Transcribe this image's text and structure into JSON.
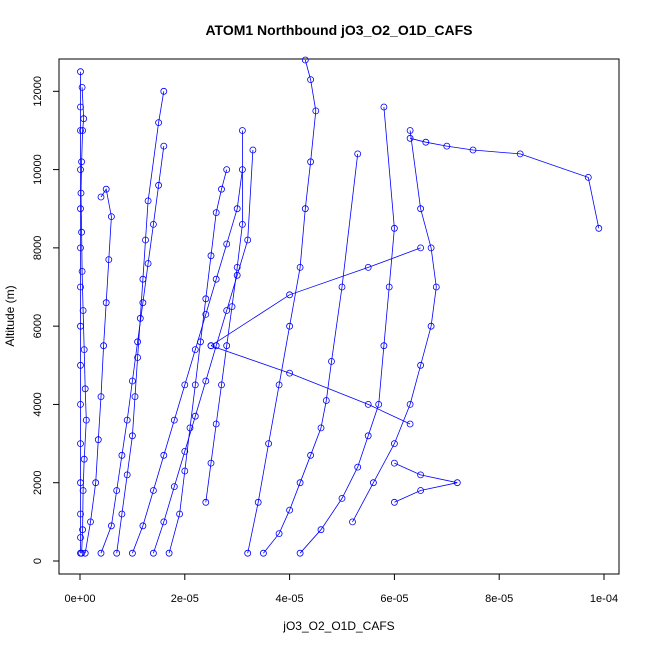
{
  "chart_data": {
    "type": "scatter",
    "title": "ATOM1 Northbound jO3_O2_O1D_CAFS",
    "xlabel": "jO3_O2_O1D_CAFS",
    "ylabel": "Altitude (m)",
    "xlim": [
      0,
      0.0001
    ],
    "ylim": [
      0,
      12800
    ],
    "x_ticks": [
      0,
      2e-05,
      4e-05,
      6e-05,
      8e-05,
      0.0001
    ],
    "x_tick_labels": [
      "0e+00",
      "2e-05",
      "4e-05",
      "6e-05",
      "8e-05",
      "1e-04"
    ],
    "y_ticks": [
      0,
      2000,
      4000,
      6000,
      8000,
      10000,
      12000
    ],
    "y_tick_labels": [
      "0",
      "2000",
      "4000",
      "6000",
      "8000",
      "10000",
      "12000"
    ],
    "grid": false,
    "legend": "none",
    "line_color": "#0000ff",
    "series": [
      {
        "x": [
          1e-07,
          1e-07,
          1e-07,
          1e-07,
          1e-07,
          1e-07,
          1e-07,
          1e-07,
          1e-07,
          1e-07,
          1e-07,
          1e-07,
          1e-07,
          1e-07,
          1e-07
        ],
        "y": [
          200,
          600,
          1200,
          2000,
          3000,
          4000,
          5000,
          6000,
          7000,
          8000,
          9000,
          10000,
          11000,
          11600,
          12500
        ]
      },
      {
        "x": [
          3e-07,
          5e-07,
          6e-07,
          8e-07,
          1.2e-06,
          1e-06,
          8e-07,
          6e-07,
          4e-07,
          3e-07,
          2e-07,
          3e-07,
          5e-07,
          7e-07,
          4e-07
        ],
        "y": [
          200,
          800,
          1800,
          2600,
          3600,
          4400,
          5400,
          6400,
          7400,
          8400,
          9400,
          10200,
          11000,
          11300,
          12100
        ]
      },
      {
        "x": [
          1e-06,
          2e-06,
          3e-06,
          3.5e-06,
          4e-06,
          4.5e-06,
          5e-06,
          5.5e-06,
          6e-06,
          5e-06,
          4e-06
        ],
        "y": [
          200,
          1000,
          2000,
          3100,
          4200,
          5500,
          6600,
          7700,
          8800,
          9500,
          9300
        ]
      },
      {
        "x": [
          4e-06,
          6e-06,
          7e-06,
          8e-06,
          9e-06,
          1e-05,
          1.1e-05,
          1.2e-05,
          1.3e-05,
          1.4e-05,
          1.5e-05,
          1.6e-05
        ],
        "y": [
          200,
          900,
          1800,
          2700,
          3600,
          4600,
          5600,
          6600,
          7600,
          8600,
          9600,
          10600
        ]
      },
      {
        "x": [
          7e-06,
          8e-06,
          9e-06,
          1e-05,
          1.05e-05,
          1.1e-05,
          1.15e-05,
          1.2e-05,
          1.25e-05,
          1.3e-05,
          1.5e-05,
          1.6e-05
        ],
        "y": [
          200,
          1200,
          2200,
          3200,
          4200,
          5200,
          6200,
          7200,
          8200,
          9200,
          11200,
          12000
        ]
      },
      {
        "x": [
          1e-05,
          1.2e-05,
          1.4e-05,
          1.6e-05,
          1.8e-05,
          2e-05,
          2.2e-05,
          2.4e-05,
          2.6e-05,
          2.8e-05,
          3e-05,
          3.1e-05
        ],
        "y": [
          200,
          900,
          1800,
          2700,
          3600,
          4500,
          5400,
          6300,
          7200,
          8100,
          9000,
          10000
        ]
      },
      {
        "x": [
          1.4e-05,
          1.6e-05,
          1.8e-05,
          2e-05,
          2.2e-05,
          2.4e-05,
          2.6e-05,
          2.8e-05,
          3e-05,
          3.2e-05,
          3.3e-05
        ],
        "y": [
          200,
          1000,
          1900,
          2800,
          3700,
          4600,
          5500,
          6400,
          7300,
          8200,
          10500
        ]
      },
      {
        "x": [
          1.7e-05,
          1.9e-05,
          2e-05,
          2.1e-05,
          2.2e-05,
          2.3e-05,
          2.4e-05,
          2.5e-05,
          2.6e-05,
          2.7e-05,
          2.8e-05
        ],
        "y": [
          200,
          1200,
          2300,
          3400,
          4500,
          5600,
          6700,
          7800,
          8900,
          9500,
          10000
        ]
      },
      {
        "x": [
          2.4e-05,
          2.5e-05,
          2.6e-05,
          2.7e-05,
          2.8e-05,
          2.9e-05,
          3e-05,
          3.1e-05,
          3.1e-05
        ],
        "y": [
          1500,
          2500,
          3500,
          4500,
          5500,
          6500,
          7500,
          8600,
          11000
        ]
      },
      {
        "x": [
          3.2e-05,
          3.4e-05,
          3.6e-05,
          3.8e-05,
          4e-05,
          4.2e-05,
          4.3e-05,
          4.4e-05,
          4.5e-05,
          4.4e-05,
          4.3e-05
        ],
        "y": [
          200,
          1500,
          3000,
          4500,
          6000,
          7500,
          9000,
          10200,
          11500,
          12300,
          12800
        ]
      },
      {
        "x": [
          3.5e-05,
          3.8e-05,
          4e-05,
          4.2e-05,
          4.4e-05,
          4.6e-05,
          4.7e-05,
          4.8e-05,
          5e-05,
          5.3e-05
        ],
        "y": [
          200,
          700,
          1300,
          2000,
          2700,
          3400,
          4100,
          5100,
          7000,
          10400
        ]
      },
      {
        "x": [
          4.2e-05,
          4.6e-05,
          5e-05,
          5.3e-05,
          5.5e-05,
          5.7e-05,
          5.8e-05,
          5.9e-05,
          6e-05,
          5.8e-05
        ],
        "y": [
          200,
          800,
          1600,
          2400,
          3200,
          4000,
          5500,
          7000,
          8500,
          11600
        ]
      },
      {
        "x": [
          5.2e-05,
          5.6e-05,
          6e-05,
          6.3e-05,
          6.5e-05,
          6.7e-05,
          6.8e-05,
          6.7e-05,
          6.5e-05,
          6.3e-05
        ],
        "y": [
          1000,
          2000,
          3000,
          4000,
          5000,
          6000,
          7000,
          8000,
          9000,
          11000
        ]
      },
      {
        "x": [
          2.5e-05,
          4e-05,
          5.5e-05,
          6.5e-05
        ],
        "y": [
          5500,
          6800,
          7500,
          8000
        ]
      },
      {
        "x": [
          2.5e-05,
          4e-05,
          5.5e-05,
          6.3e-05
        ],
        "y": [
          5500,
          4800,
          4000,
          3500
        ]
      },
      {
        "x": [
          6.3e-05,
          6.6e-05,
          7e-05,
          7.5e-05,
          8.4e-05,
          9.7e-05,
          9.9e-05
        ],
        "y": [
          10800,
          10700,
          10600,
          10500,
          10400,
          9800,
          8500
        ]
      },
      {
        "x": [
          6e-05,
          6.5e-05,
          7.2e-05,
          6.5e-05,
          6e-05
        ],
        "y": [
          2500,
          2200,
          2000,
          1800,
          1500
        ]
      }
    ]
  }
}
